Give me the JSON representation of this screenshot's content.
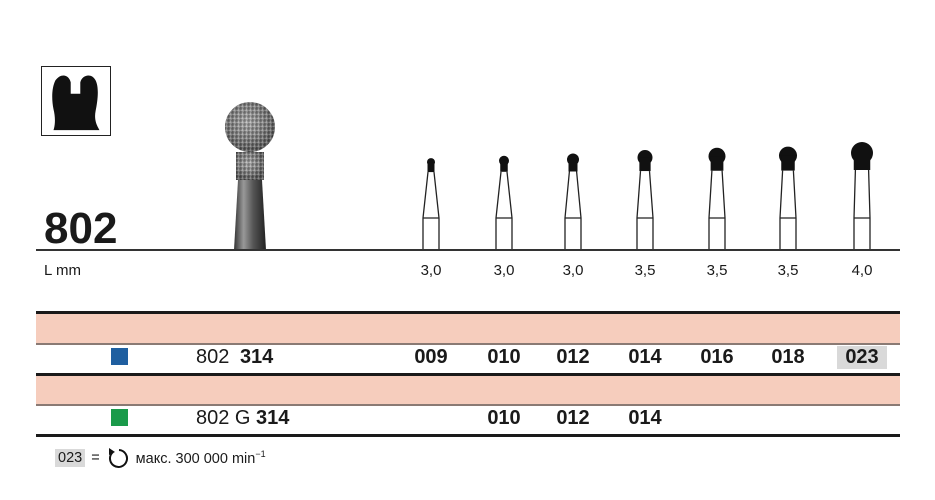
{
  "title": "802",
  "length_label": "L mm",
  "columns": [
    {
      "length": "3,0",
      "size": "009"
    },
    {
      "length": "3,0",
      "size": "010"
    },
    {
      "length": "3,0",
      "size": "012"
    },
    {
      "length": "3,5",
      "size": "014"
    },
    {
      "length": "3,5",
      "size": "016"
    },
    {
      "length": "3,5",
      "size": "018"
    },
    {
      "length": "4,0",
      "size": "023"
    }
  ],
  "rows": [
    {
      "color": "#1f5fa0",
      "ref_prefix": "802",
      "ref_bold": "314",
      "codes": [
        "009",
        "010",
        "012",
        "014",
        "016",
        "018",
        "023"
      ],
      "highlight": "023"
    },
    {
      "color": "#1a9a4a",
      "ref_prefix": "802 G",
      "ref_bold": "314",
      "codes": [
        "",
        "010",
        "012",
        "014",
        "",
        "",
        ""
      ],
      "highlight": ""
    }
  ],
  "colors": {
    "band": "#f6cdbd",
    "highlight": "#d9d9d9"
  },
  "footer": {
    "code": "023",
    "equals": "=",
    "icon": "rotation-icon",
    "text": "макс. 300 000 min",
    "superscript": "−1"
  }
}
